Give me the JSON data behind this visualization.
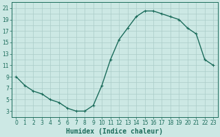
{
  "x": [
    0,
    1,
    2,
    3,
    4,
    5,
    6,
    7,
    8,
    9,
    10,
    11,
    12,
    13,
    14,
    15,
    16,
    17,
    18,
    19,
    20,
    21,
    22,
    23
  ],
  "y": [
    9,
    7.5,
    6.5,
    6,
    5,
    4.5,
    3.5,
    3,
    3,
    4,
    7.5,
    12,
    15.5,
    17.5,
    19.5,
    20.5,
    20.5,
    20,
    19.5,
    19,
    17.5,
    16.5,
    12,
    11
  ],
  "line_color": "#1a6b5a",
  "marker": "+",
  "marker_size": 3,
  "bg_color": "#cce8e4",
  "grid_color": "#aaccc8",
  "xlabel": "Humidex (Indice chaleur)",
  "xlabel_fontsize": 7,
  "ylabel_ticks": [
    3,
    5,
    7,
    9,
    11,
    13,
    15,
    17,
    19,
    21
  ],
  "xticks": [
    0,
    1,
    2,
    3,
    4,
    5,
    6,
    7,
    8,
    9,
    10,
    11,
    12,
    13,
    14,
    15,
    16,
    17,
    18,
    19,
    20,
    21,
    22,
    23
  ],
  "ylim": [
    2.0,
    22.0
  ],
  "xlim": [
    -0.5,
    23.5
  ],
  "tick_fontsize": 5.5,
  "line_width": 1.0
}
